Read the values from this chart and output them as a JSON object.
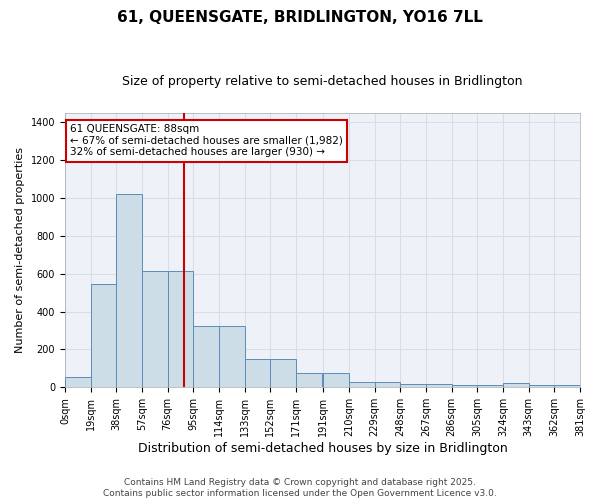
{
  "title": "61, QUEENSGATE, BRIDLINGTON, YO16 7LL",
  "subtitle": "Size of property relative to semi-detached houses in Bridlington",
  "xlabel": "Distribution of semi-detached houses by size in Bridlington",
  "ylabel": "Number of semi-detached properties",
  "bin_starts": [
    0,
    19,
    38,
    57,
    76,
    95,
    114,
    133,
    152,
    171,
    191,
    210,
    229,
    248,
    267,
    286,
    305,
    324,
    343,
    362
  ],
  "bar_heights": [
    55,
    545,
    1020,
    615,
    615,
    325,
    325,
    150,
    150,
    75,
    75,
    30,
    30,
    20,
    20,
    15,
    15,
    25,
    10,
    10
  ],
  "bin_width": 19,
  "bar_color": "#cddde8",
  "bar_edge_color": "#5b8db8",
  "red_line_x": 88,
  "annotation_text": "61 QUEENSGATE: 88sqm\n← 67% of semi-detached houses are smaller (1,982)\n32% of semi-detached houses are larger (930) →",
  "annotation_box_color": "#ffffff",
  "annotation_border_color": "#cc0000",
  "footer": "Contains HM Land Registry data © Crown copyright and database right 2025.\nContains public sector information licensed under the Open Government Licence v3.0.",
  "ylim": [
    0,
    1450
  ],
  "yticks": [
    0,
    200,
    400,
    600,
    800,
    1000,
    1200,
    1400
  ],
  "xlim": [
    0,
    381
  ],
  "x_tick_positions": [
    0,
    19,
    38,
    57,
    76,
    95,
    114,
    133,
    152,
    171,
    191,
    210,
    229,
    248,
    267,
    286,
    305,
    324,
    343,
    362,
    381
  ],
  "x_tick_labels": [
    "0sqm",
    "19sqm",
    "38sqm",
    "57sqm",
    "76sqm",
    "95sqm",
    "114sqm",
    "133sqm",
    "152sqm",
    "171sqm",
    "191sqm",
    "210sqm",
    "229sqm",
    "248sqm",
    "267sqm",
    "286sqm",
    "305sqm",
    "324sqm",
    "343sqm",
    "362sqm",
    "381sqm"
  ],
  "bg_color": "#eef2f8",
  "grid_color": "#d8dde8",
  "title_fontsize": 11,
  "subtitle_fontsize": 9,
  "ylabel_fontsize": 8,
  "xlabel_fontsize": 9,
  "tick_fontsize": 7,
  "footer_fontsize": 6.5,
  "annot_fontsize": 7.5
}
